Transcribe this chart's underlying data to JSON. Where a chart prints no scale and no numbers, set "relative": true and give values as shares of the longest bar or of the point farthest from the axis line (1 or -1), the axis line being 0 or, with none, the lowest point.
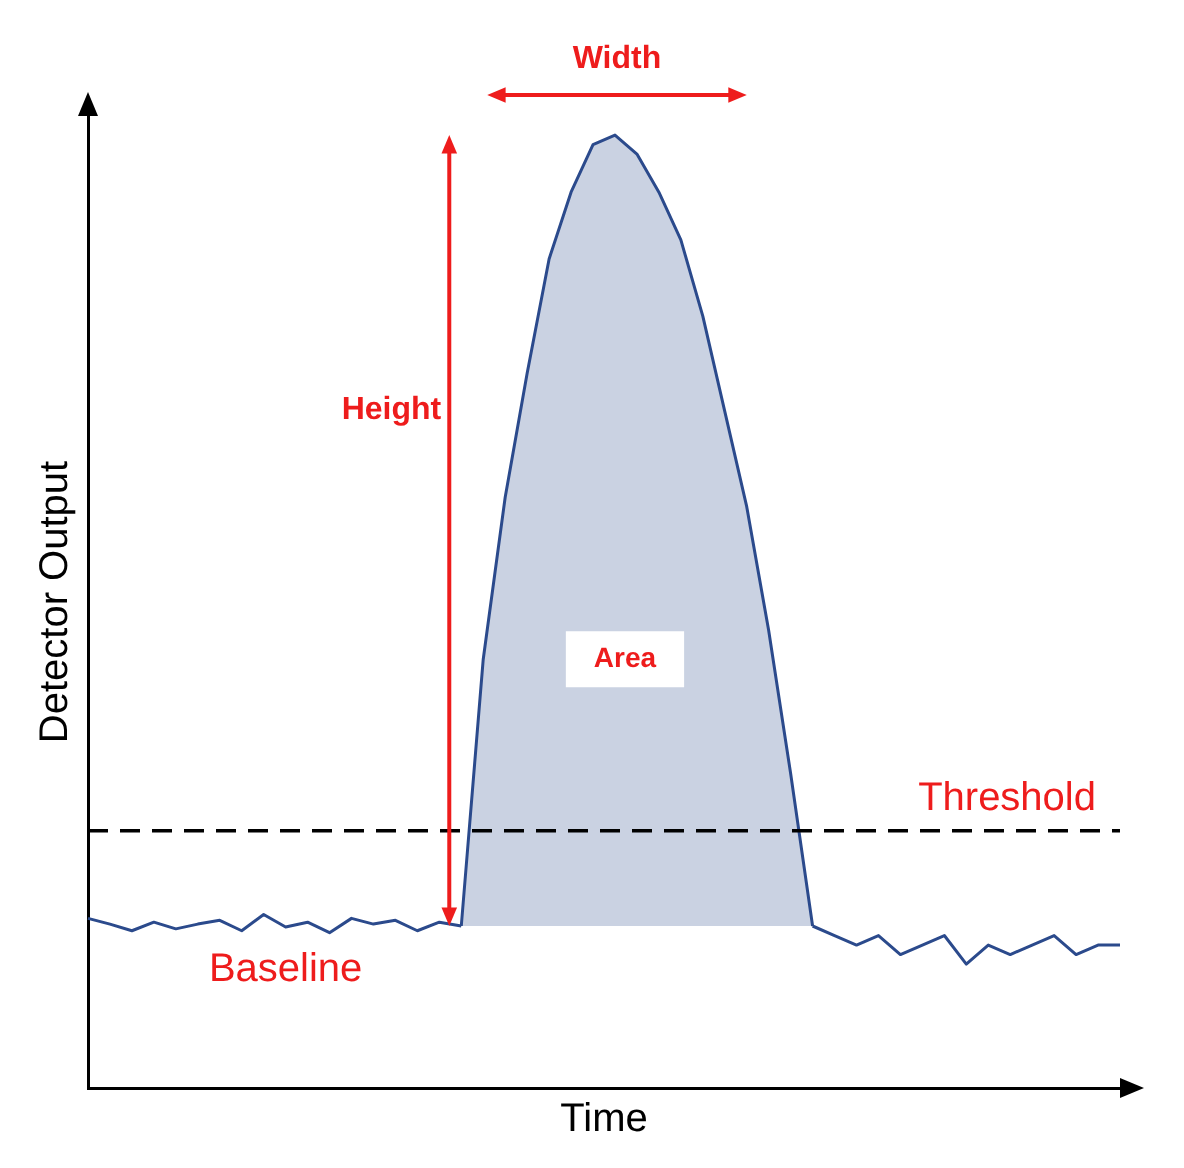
{
  "chart_data": {
    "type": "line",
    "relative": true,
    "xlabel": "Time",
    "ylabel": "Detector Output",
    "categories": [
      null,
      null,
      null,
      null,
      null,
      null,
      null,
      null,
      null,
      null,
      null,
      null,
      null,
      null,
      null,
      null,
      null,
      null,
      null,
      null,
      null,
      null,
      null,
      null,
      null,
      null,
      null,
      null,
      null,
      null,
      null,
      null,
      null,
      null,
      null,
      null,
      null,
      null,
      null,
      null,
      null,
      null,
      null,
      null,
      null,
      null,
      null,
      null
    ],
    "series": [
      {
        "color": "#2b4a8c",
        "values": [
          0.178,
          0.172,
          0.165,
          0.174,
          0.167,
          0.172,
          0.176,
          0.165,
          0.182,
          0.169,
          0.174,
          0.163,
          0.178,
          0.172,
          0.176,
          0.165,
          0.174,
          0.17,
          null,
          null,
          null,
          null,
          null,
          null,
          null,
          null,
          null,
          null,
          null,
          null,
          null,
          null,
          null,
          0.17,
          0.16,
          0.15,
          0.16,
          0.14,
          0.15,
          0.16,
          0.13,
          0.15,
          0.14,
          0.15,
          0.16,
          0.14,
          0.15,
          0.15
        ]
      },
      {
        "type": "area",
        "color": "#2b4a8c",
        "values": [
          null,
          null,
          null,
          null,
          null,
          null,
          null,
          null,
          null,
          null,
          null,
          null,
          null,
          null,
          null,
          null,
          null,
          0.17,
          0.45,
          0.62,
          0.75,
          0.87,
          0.94,
          0.99,
          1.0,
          0.98,
          0.94,
          0.89,
          0.81,
          0.71,
          0.61,
          0.48,
          0.33,
          0.17,
          null,
          null,
          null,
          null,
          null,
          null,
          null,
          null,
          null,
          null,
          null,
          null,
          null,
          null
        ]
      }
    ],
    "ref_lines": [
      {
        "axis": "y",
        "value": 0.27,
        "label": "Threshold",
        "color": "#000000",
        "line_style": "dashed"
      }
    ],
    "annotations": [
      "Width",
      "Height",
      "Area",
      "Baseline"
    ],
    "grid": false,
    "legend": false,
    "marker": "none"
  }
}
